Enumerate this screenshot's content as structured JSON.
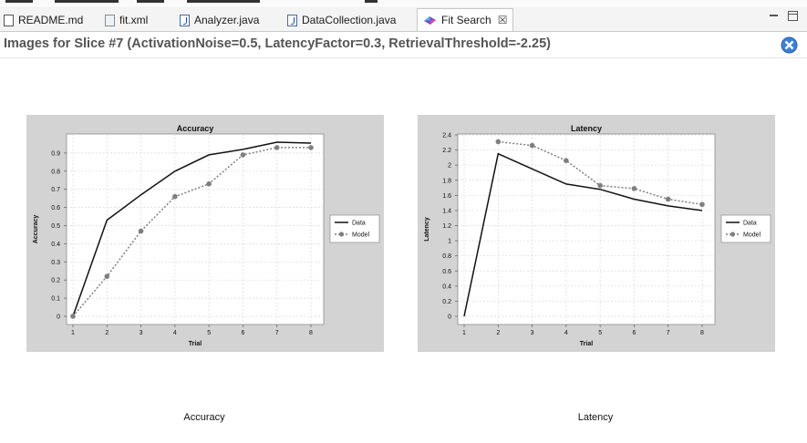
{
  "tabs": [
    {
      "label": "README.md",
      "icon": "markdown-file-icon"
    },
    {
      "label": "fit.xml",
      "icon": "xml-file-icon"
    },
    {
      "label": "Analyzer.java",
      "icon": "java-file-icon"
    },
    {
      "label": "DataCollection.java",
      "icon": "java-file-icon"
    },
    {
      "label": "Fit Search",
      "icon": "fit-search-icon",
      "active": true
    }
  ],
  "page_title": "Images for Slice #7 (ActivationNoise=0.5, LatencyFactor=0.3, RetrievalThreshold=-2.25)",
  "captions": {
    "left": "Accuracy",
    "right": "Latency"
  },
  "colors": {
    "data_line": "#111111",
    "model_line": "#7f7f7f",
    "chart_bg": "#d3d3d3",
    "close_button": "#3d7fd8"
  },
  "chart_data": [
    {
      "type": "line",
      "title": "Accuracy",
      "xlabel": "Trial",
      "ylabel": "Accuracy",
      "x": [
        1,
        2,
        3,
        4,
        5,
        6,
        7,
        8
      ],
      "xlim": [
        1,
        8
      ],
      "ylim": [
        0,
        1.0
      ],
      "yticks": [
        0,
        0.1,
        0.2,
        0.3,
        0.4,
        0.5,
        0.6,
        0.7,
        0.8,
        0.9
      ],
      "grid": true,
      "legend": "right",
      "series": [
        {
          "name": "Data",
          "style": "solid",
          "values": [
            0.0,
            0.53,
            0.67,
            0.8,
            0.89,
            0.92,
            0.96,
            0.955
          ]
        },
        {
          "name": "Model",
          "style": "dotted-markers",
          "values": [
            0.0,
            0.22,
            0.47,
            0.66,
            0.73,
            0.89,
            0.93,
            0.93
          ]
        }
      ]
    },
    {
      "type": "line",
      "title": "Latency",
      "xlabel": "Trial",
      "ylabel": "Latency",
      "x": [
        1,
        2,
        3,
        4,
        5,
        6,
        7,
        8
      ],
      "xlim": [
        1,
        8
      ],
      "ylim": [
        0,
        2.4
      ],
      "yticks": [
        0,
        0.2,
        0.4,
        0.6,
        0.8,
        1,
        1.2,
        1.4,
        1.6,
        1.8,
        2,
        2.2,
        2.4
      ],
      "grid": true,
      "legend": "right",
      "series": [
        {
          "name": "Data",
          "style": "solid",
          "values": [
            0.0,
            2.15,
            1.95,
            1.75,
            1.68,
            1.55,
            1.46,
            1.4
          ]
        },
        {
          "name": "Model",
          "style": "dotted-markers",
          "values": [
            null,
            2.31,
            2.26,
            2.06,
            1.73,
            1.69,
            1.55,
            1.48
          ]
        }
      ]
    }
  ]
}
